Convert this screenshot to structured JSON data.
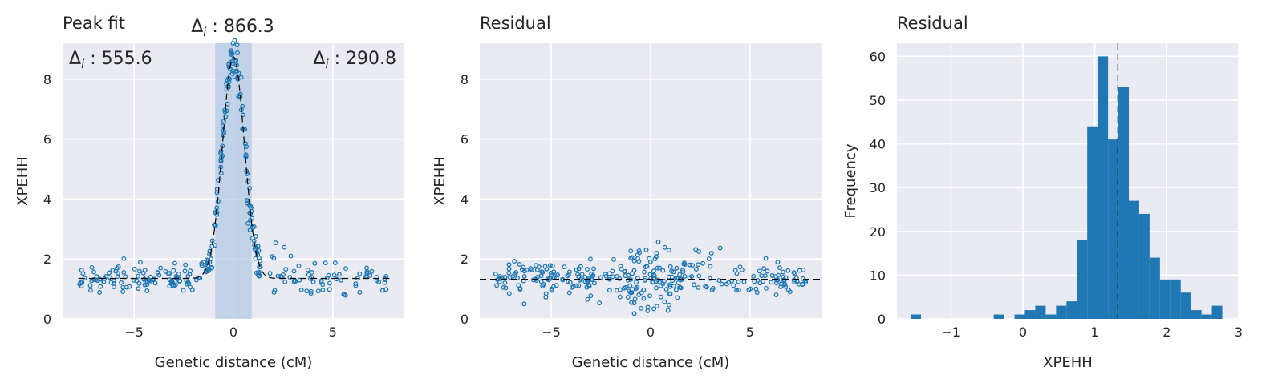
{
  "colors": {
    "background": "#eaeaf2",
    "grid": "#ffffff",
    "points": "#1f77b4",
    "bars": "#1f77b4",
    "span": "#a9c4e0",
    "reference_line": "#000000"
  },
  "chart_data": [
    {
      "type": "scatter",
      "title": "Peak fit",
      "xlabel": "Genetic distance (cM)",
      "ylabel": "XPEHH",
      "xlim": [
        -8.6,
        8.6
      ],
      "ylim": [
        0,
        9.2
      ],
      "xticks": [
        {
          "v": -5,
          "t": "−5"
        },
        {
          "v": 0,
          "t": "0"
        },
        {
          "v": 5,
          "t": "5"
        }
      ],
      "yticks": [
        {
          "v": 0,
          "t": "0"
        },
        {
          "v": 2,
          "t": "2"
        },
        {
          "v": 4,
          "t": "4"
        },
        {
          "v": 6,
          "t": "6"
        },
        {
          "v": 8,
          "t": "8"
        }
      ],
      "grid": true,
      "peak_fit": {
        "baseline": 1.35,
        "height": 7.4,
        "center": 0.0,
        "half_width": 0.55,
        "span": [
          -0.92,
          0.92
        ]
      },
      "annotations": [
        {
          "pos": "top-left",
          "symbol": "Δ",
          "sub": "i",
          "value": " : 555.6"
        },
        {
          "pos": "top-center",
          "symbol": "Δ",
          "sub": "i",
          "value": " : 866.3"
        },
        {
          "pos": "top-right",
          "symbol": "Δ",
          "sub": "i",
          "value": " : 290.8"
        }
      ]
    },
    {
      "type": "scatter",
      "title": "Residual",
      "xlabel": "Genetic distance (cM)",
      "ylabel": "XPEHH",
      "xlim": [
        -8.6,
        8.6
      ],
      "ylim": [
        0,
        9.2
      ],
      "xticks": [
        {
          "v": -5,
          "t": "−5"
        },
        {
          "v": 0,
          "t": "0"
        },
        {
          "v": 5,
          "t": "5"
        }
      ],
      "yticks": [
        {
          "v": 0,
          "t": "0"
        },
        {
          "v": 2,
          "t": "2"
        },
        {
          "v": 4,
          "t": "4"
        },
        {
          "v": 6,
          "t": "6"
        },
        {
          "v": 8,
          "t": "8"
        }
      ],
      "grid": true,
      "reference_line_y": 1.32
    },
    {
      "type": "bar",
      "title": "Residual",
      "xlabel": "XPEHH",
      "ylabel": "Frequency",
      "xlim": [
        -1.75,
        3.0
      ],
      "ylim": [
        0,
        63
      ],
      "xticks": [
        {
          "v": -1,
          "t": "−1"
        },
        {
          "v": 0,
          "t": "0"
        },
        {
          "v": 1,
          "t": "1"
        },
        {
          "v": 2,
          "t": "2"
        },
        {
          "v": 3,
          "t": "3"
        }
      ],
      "yticks": [
        {
          "v": 0,
          "t": "0"
        },
        {
          "v": 10,
          "t": "10"
        },
        {
          "v": 20,
          "t": "20"
        },
        {
          "v": 30,
          "t": "30"
        },
        {
          "v": 40,
          "t": "40"
        },
        {
          "v": 50,
          "t": "50"
        },
        {
          "v": 60,
          "t": "60"
        }
      ],
      "grid": true,
      "bin_start": -1.56,
      "bin_width": 0.1444,
      "values": [
        1,
        0,
        0,
        0,
        0,
        0,
        0,
        0,
        1,
        0,
        1,
        2,
        3,
        1,
        3,
        4,
        18,
        44,
        60,
        41,
        53,
        27,
        24,
        14,
        9,
        9,
        6,
        2,
        1,
        3
      ],
      "vline_x": 1.32
    }
  ]
}
